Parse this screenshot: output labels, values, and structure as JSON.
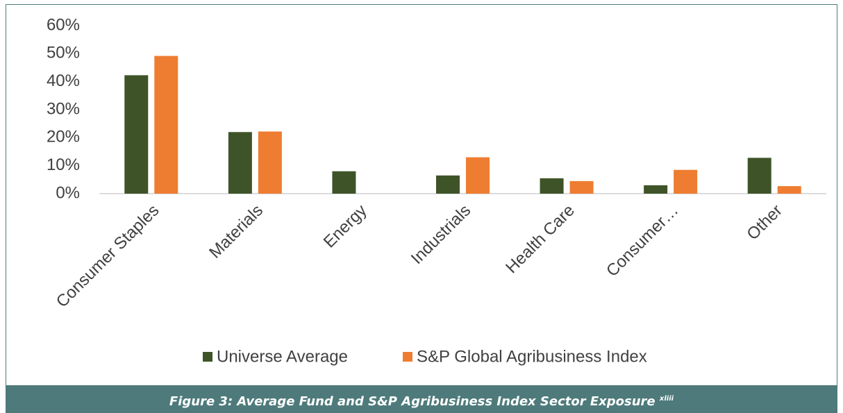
{
  "chart_data": {
    "type": "bar",
    "categories": [
      "Consumer Staples",
      "Materials",
      "Energy",
      "Industrials",
      "Health Care",
      "Consumer…",
      "Other"
    ],
    "series": [
      {
        "name": "Universe Average",
        "color": "#3e5428",
        "values": [
          42.3,
          22,
          8,
          6.5,
          5.5,
          3,
          12.8
        ]
      },
      {
        "name": "S&P Global Agribusiness Index",
        "color": "#ee7d31",
        "values": [
          49.2,
          22.2,
          0,
          13,
          4.5,
          8.5,
          2.7
        ]
      }
    ],
    "ylim": [
      0,
      60
    ],
    "yticks": [
      {
        "value": 0,
        "label": "0%"
      },
      {
        "value": 10,
        "label": "10%"
      },
      {
        "value": 20,
        "label": "20%"
      },
      {
        "value": 30,
        "label": "30%"
      },
      {
        "value": 40,
        "label": "40%"
      },
      {
        "value": 50,
        "label": "50%"
      },
      {
        "value": 60,
        "label": "60%"
      }
    ],
    "legend": "bottom",
    "caption": "Figure 3: Average Fund and S&P Agribusiness Index Sector Exposure",
    "caption_note": "xliii"
  }
}
